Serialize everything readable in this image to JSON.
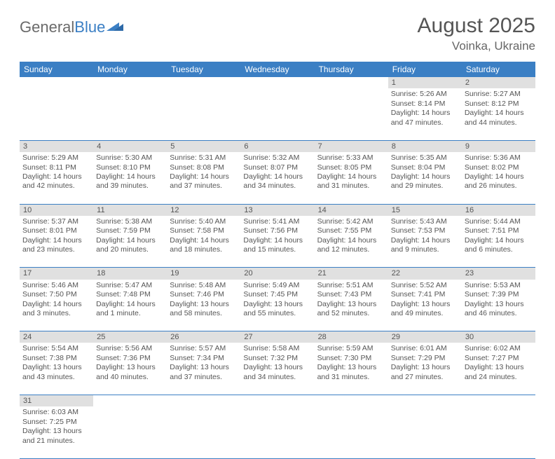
{
  "logo": {
    "part1": "General",
    "part2": "Blue"
  },
  "title": "August 2025",
  "location": "Voinka, Ukraine",
  "colors": {
    "header_bg": "#3b7fc4",
    "header_text": "#ffffff",
    "daynum_bg": "#e0e0e0",
    "row_border": "#3b7fc4",
    "body_text": "#555555",
    "page_bg": "#ffffff"
  },
  "typography": {
    "title_fontsize": 30,
    "location_fontsize": 17,
    "dayheader_fontsize": 12,
    "cell_fontsize": 10.5
  },
  "day_headers": [
    "Sunday",
    "Monday",
    "Tuesday",
    "Wednesday",
    "Thursday",
    "Friday",
    "Saturday"
  ],
  "weeks": [
    [
      null,
      null,
      null,
      null,
      null,
      {
        "n": "1",
        "sunrise": "5:26 AM",
        "sunset": "8:14 PM",
        "daylight": "14 hours and 47 minutes."
      },
      {
        "n": "2",
        "sunrise": "5:27 AM",
        "sunset": "8:12 PM",
        "daylight": "14 hours and 44 minutes."
      }
    ],
    [
      {
        "n": "3",
        "sunrise": "5:29 AM",
        "sunset": "8:11 PM",
        "daylight": "14 hours and 42 minutes."
      },
      {
        "n": "4",
        "sunrise": "5:30 AM",
        "sunset": "8:10 PM",
        "daylight": "14 hours and 39 minutes."
      },
      {
        "n": "5",
        "sunrise": "5:31 AM",
        "sunset": "8:08 PM",
        "daylight": "14 hours and 37 minutes."
      },
      {
        "n": "6",
        "sunrise": "5:32 AM",
        "sunset": "8:07 PM",
        "daylight": "14 hours and 34 minutes."
      },
      {
        "n": "7",
        "sunrise": "5:33 AM",
        "sunset": "8:05 PM",
        "daylight": "14 hours and 31 minutes."
      },
      {
        "n": "8",
        "sunrise": "5:35 AM",
        "sunset": "8:04 PM",
        "daylight": "14 hours and 29 minutes."
      },
      {
        "n": "9",
        "sunrise": "5:36 AM",
        "sunset": "8:02 PM",
        "daylight": "14 hours and 26 minutes."
      }
    ],
    [
      {
        "n": "10",
        "sunrise": "5:37 AM",
        "sunset": "8:01 PM",
        "daylight": "14 hours and 23 minutes."
      },
      {
        "n": "11",
        "sunrise": "5:38 AM",
        "sunset": "7:59 PM",
        "daylight": "14 hours and 20 minutes."
      },
      {
        "n": "12",
        "sunrise": "5:40 AM",
        "sunset": "7:58 PM",
        "daylight": "14 hours and 18 minutes."
      },
      {
        "n": "13",
        "sunrise": "5:41 AM",
        "sunset": "7:56 PM",
        "daylight": "14 hours and 15 minutes."
      },
      {
        "n": "14",
        "sunrise": "5:42 AM",
        "sunset": "7:55 PM",
        "daylight": "14 hours and 12 minutes."
      },
      {
        "n": "15",
        "sunrise": "5:43 AM",
        "sunset": "7:53 PM",
        "daylight": "14 hours and 9 minutes."
      },
      {
        "n": "16",
        "sunrise": "5:44 AM",
        "sunset": "7:51 PM",
        "daylight": "14 hours and 6 minutes."
      }
    ],
    [
      {
        "n": "17",
        "sunrise": "5:46 AM",
        "sunset": "7:50 PM",
        "daylight": "14 hours and 3 minutes."
      },
      {
        "n": "18",
        "sunrise": "5:47 AM",
        "sunset": "7:48 PM",
        "daylight": "14 hours and 1 minute."
      },
      {
        "n": "19",
        "sunrise": "5:48 AM",
        "sunset": "7:46 PM",
        "daylight": "13 hours and 58 minutes."
      },
      {
        "n": "20",
        "sunrise": "5:49 AM",
        "sunset": "7:45 PM",
        "daylight": "13 hours and 55 minutes."
      },
      {
        "n": "21",
        "sunrise": "5:51 AM",
        "sunset": "7:43 PM",
        "daylight": "13 hours and 52 minutes."
      },
      {
        "n": "22",
        "sunrise": "5:52 AM",
        "sunset": "7:41 PM",
        "daylight": "13 hours and 49 minutes."
      },
      {
        "n": "23",
        "sunrise": "5:53 AM",
        "sunset": "7:39 PM",
        "daylight": "13 hours and 46 minutes."
      }
    ],
    [
      {
        "n": "24",
        "sunrise": "5:54 AM",
        "sunset": "7:38 PM",
        "daylight": "13 hours and 43 minutes."
      },
      {
        "n": "25",
        "sunrise": "5:56 AM",
        "sunset": "7:36 PM",
        "daylight": "13 hours and 40 minutes."
      },
      {
        "n": "26",
        "sunrise": "5:57 AM",
        "sunset": "7:34 PM",
        "daylight": "13 hours and 37 minutes."
      },
      {
        "n": "27",
        "sunrise": "5:58 AM",
        "sunset": "7:32 PM",
        "daylight": "13 hours and 34 minutes."
      },
      {
        "n": "28",
        "sunrise": "5:59 AM",
        "sunset": "7:30 PM",
        "daylight": "13 hours and 31 minutes."
      },
      {
        "n": "29",
        "sunrise": "6:01 AM",
        "sunset": "7:29 PM",
        "daylight": "13 hours and 27 minutes."
      },
      {
        "n": "30",
        "sunrise": "6:02 AM",
        "sunset": "7:27 PM",
        "daylight": "13 hours and 24 minutes."
      }
    ],
    [
      {
        "n": "31",
        "sunrise": "6:03 AM",
        "sunset": "7:25 PM",
        "daylight": "13 hours and 21 minutes."
      },
      null,
      null,
      null,
      null,
      null,
      null
    ]
  ],
  "labels": {
    "sunrise_prefix": "Sunrise: ",
    "sunset_prefix": "Sunset: ",
    "daylight_prefix": "Daylight: "
  }
}
